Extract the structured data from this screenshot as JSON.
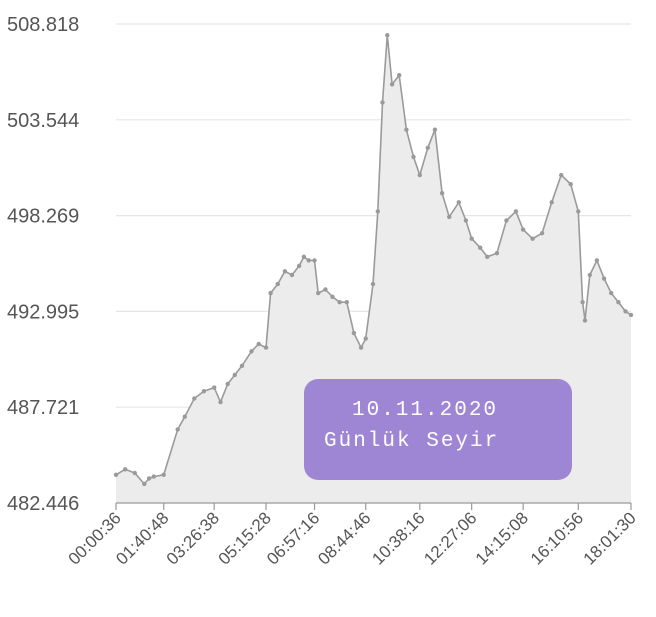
{
  "badge": {
    "line1": "10.11.2020",
    "line2": "Günlük Seyir"
  },
  "chart_data": {
    "type": "area",
    "ylim": [
      482.446,
      508.818
    ],
    "yticks": [
      "508.818",
      "503.544",
      "498.269",
      "492.995",
      "487.721",
      "482.446"
    ],
    "xticks": [
      "00:00:36",
      "01:40:48",
      "03:26:38",
      "05:15:28",
      "06:57:16",
      "08:44:46",
      "10:38:16",
      "12:27:06",
      "14:15:08",
      "16:10:56",
      "18:01:30"
    ],
    "grid": true,
    "line_color": "#9a9a9a",
    "fill_color": "#ececec",
    "series": [
      {
        "x": [
          "00:00:36",
          "00:20:00",
          "00:40:00",
          "01:00:00",
          "01:10:00",
          "01:20:00",
          "01:40:48",
          "02:10:00",
          "02:25:00",
          "02:45:00",
          "03:05:00",
          "03:26:38",
          "03:40:00",
          "03:55:00",
          "04:10:00",
          "04:25:00",
          "04:45:00",
          "05:00:00",
          "05:15:28",
          "05:25:00",
          "05:40:00",
          "05:55:00",
          "06:10:00",
          "06:25:00",
          "06:35:00",
          "06:45:00",
          "06:57:16",
          "07:05:00",
          "07:20:00",
          "07:35:00",
          "07:50:00",
          "08:05:00",
          "08:20:00",
          "08:35:00",
          "08:44:46",
          "09:00:00",
          "09:10:00",
          "09:20:00",
          "09:30:00",
          "09:40:00",
          "09:55:00",
          "10:10:00",
          "10:25:00",
          "10:38:16",
          "10:55:00",
          "11:10:00",
          "11:25:00",
          "11:40:00",
          "12:00:00",
          "12:15:00",
          "12:27:06",
          "12:45:00",
          "13:00:00",
          "13:20:00",
          "13:40:00",
          "14:00:00",
          "14:15:08",
          "14:35:00",
          "14:55:00",
          "15:15:00",
          "15:35:00",
          "15:55:00",
          "16:10:56",
          "16:20:00",
          "16:25:00",
          "16:35:00",
          "16:50:00",
          "17:05:00",
          "17:20:00",
          "17:35:00",
          "17:50:00",
          "18:01:30"
        ],
        "y": [
          484.0,
          484.3,
          484.1,
          483.5,
          483.8,
          483.9,
          484.0,
          486.5,
          487.2,
          488.2,
          488.6,
          488.8,
          488.0,
          489.0,
          489.5,
          490.0,
          490.8,
          491.2,
          491.0,
          494.0,
          494.5,
          495.2,
          495.0,
          495.5,
          496.0,
          495.8,
          495.8,
          494.0,
          494.2,
          493.8,
          493.5,
          493.5,
          491.8,
          491.0,
          491.5,
          494.5,
          498.5,
          504.5,
          508.2,
          505.5,
          506.0,
          503.0,
          501.5,
          500.5,
          502.0,
          503.0,
          499.5,
          498.2,
          499.0,
          498.0,
          497.0,
          496.5,
          496.0,
          496.2,
          498.0,
          498.5,
          497.5,
          497.0,
          497.3,
          499.0,
          500.5,
          500.0,
          498.5,
          493.5,
          492.5,
          495.0,
          495.8,
          494.8,
          494.0,
          493.5,
          493.0,
          492.8
        ]
      }
    ]
  }
}
